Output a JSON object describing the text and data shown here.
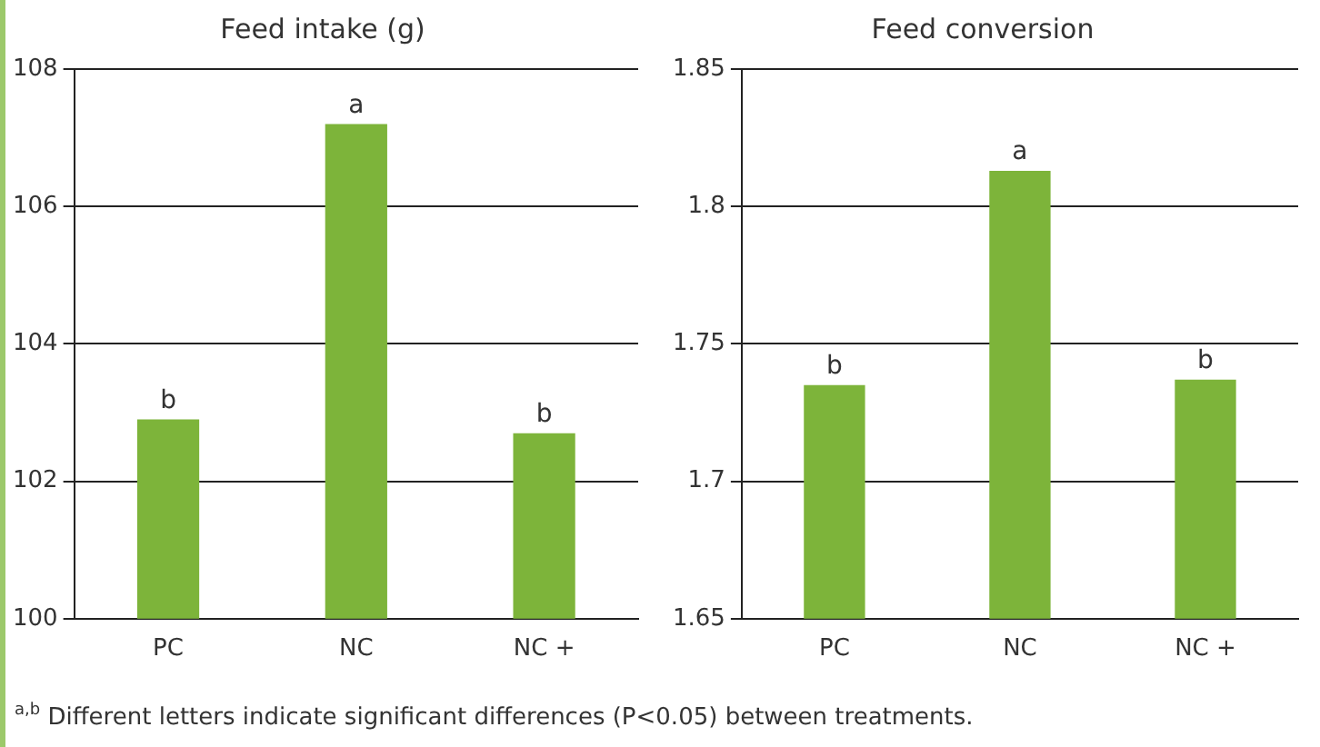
{
  "chart_data": [
    {
      "type": "bar",
      "title": "Feed intake (g)",
      "categories": [
        "PC",
        "NC",
        "NC +"
      ],
      "values": [
        102.9,
        107.2,
        102.7
      ],
      "color": "#7db43a",
      "value_labels": [
        "b",
        "a",
        "b"
      ],
      "ylim": [
        100,
        108
      ],
      "yticks": [
        100,
        102,
        104,
        106,
        108
      ],
      "grid": "y",
      "legend": false,
      "annotations": [
        "$^{a,b}$ Different letters indicate significant differences (P<0.05) between treatments."
      ]
    },
    {
      "type": "bar",
      "title": "Feed conversion",
      "categories": [
        "PC",
        "NC",
        "NC +"
      ],
      "values": [
        1.735,
        1.813,
        1.737
      ],
      "color": "#7db43a",
      "value_labels": [
        "b",
        "a",
        "b"
      ],
      "ylim": [
        1.65,
        1.85
      ],
      "yticks": [
        1.65,
        1.7,
        1.75,
        1.8,
        1.85
      ],
      "grid": "y",
      "legend": false
    }
  ]
}
